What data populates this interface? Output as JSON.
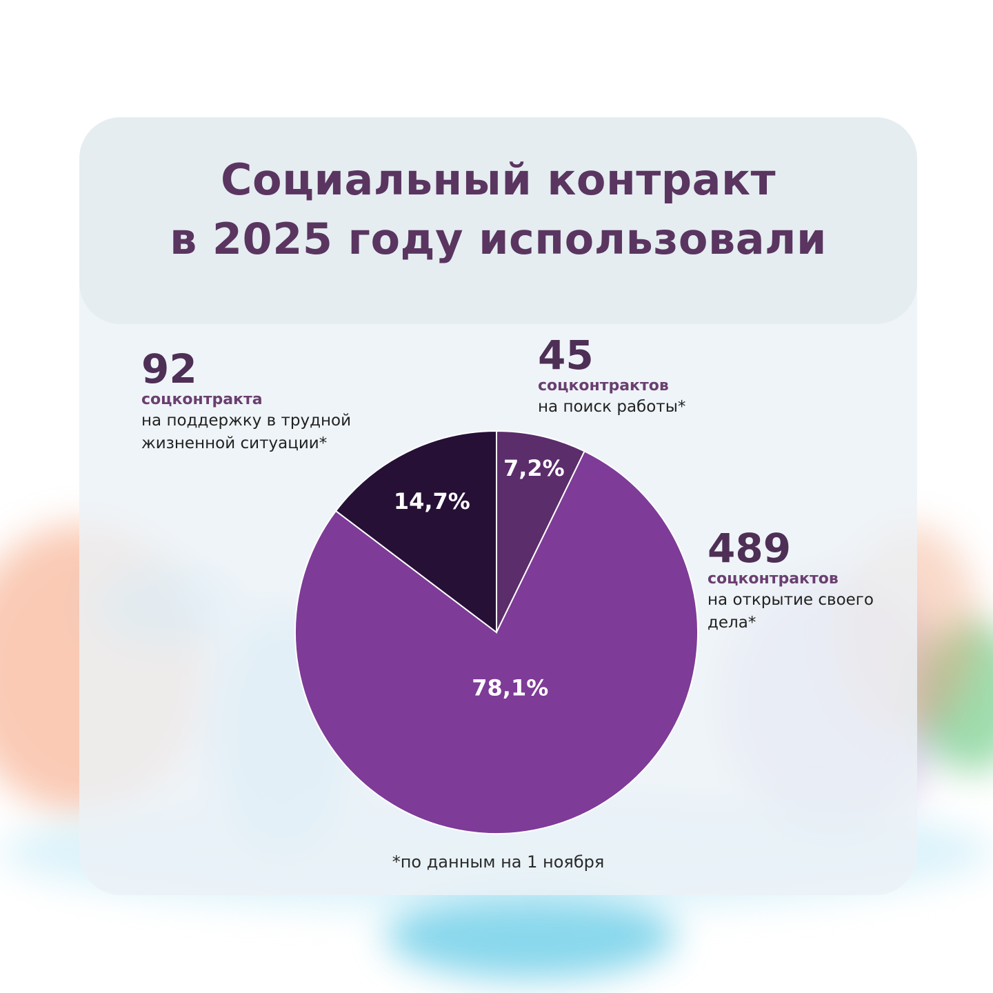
{
  "title": {
    "line1": "Социальный контракт",
    "line2": "в 2025 году использовали"
  },
  "labels": {
    "hardship": {
      "number": "92",
      "unit": "соцконтракта",
      "description": "на поддержку в трудной жизненной ситуации*"
    },
    "job_search": {
      "number": "45",
      "unit": "соцконтрактов",
      "description": "на поиск работы*"
    },
    "business": {
      "number": "489",
      "unit": "соцконтрактов",
      "description": "на открытие своего дела*"
    }
  },
  "footnote": "*по данным на 1 ноября",
  "chart_data": {
    "type": "pie",
    "title": "Социальный контракт в 2025 году использовали",
    "slices": [
      {
        "label": "7,2%",
        "value": 7.2,
        "count": 45,
        "color": "#5b2d6b"
      },
      {
        "label": "78,1%",
        "value": 78.1,
        "count": 489,
        "color": "#7e3b97"
      },
      {
        "label": "14,7%",
        "value": 14.7,
        "count": 92,
        "color": "#261036"
      }
    ],
    "start_angle_deg": 0,
    "direction": "clockwise",
    "slice_separator_color": "#ffffff",
    "label_color": "#ffffff"
  }
}
